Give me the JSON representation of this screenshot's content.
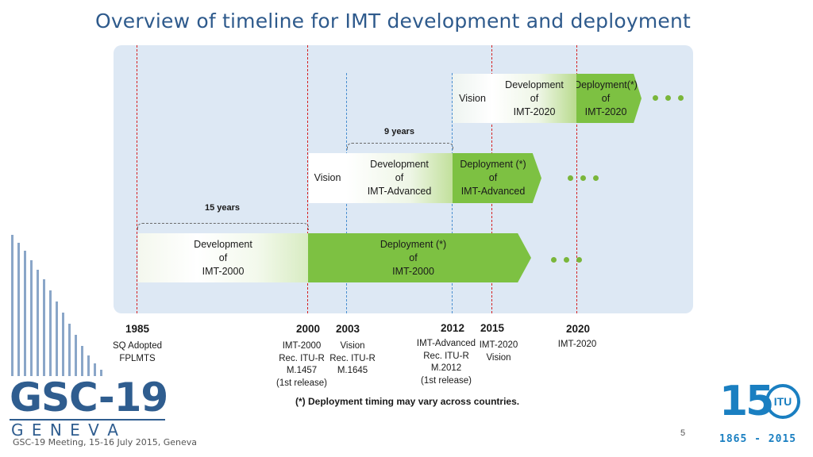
{
  "title": "Overview of timeline for IMT development and deployment",
  "colors": {
    "deploy_green": "#7dc142",
    "dev_gradient_end": "#a9d37a",
    "red_line": "#d62020",
    "blue_line": "#4a8fd0",
    "panel": "#dde8f4"
  },
  "rows": {
    "imt2020": {
      "vision": "Vision",
      "development": [
        "Development",
        "of",
        "IMT-2020"
      ],
      "deployment": [
        "Deployment(*)",
        "of",
        "IMT-2020"
      ]
    },
    "imt_advanced": {
      "bracket": "9 years",
      "vision": "Vision",
      "development": [
        "Development",
        "of",
        "IMT-Advanced"
      ],
      "deployment": [
        "Deployment (*)",
        "of",
        "IMT-Advanced"
      ]
    },
    "imt2000": {
      "bracket": "15 years",
      "development": [
        "Development",
        "of",
        "IMT-2000"
      ],
      "deployment": [
        "Deployment (*)",
        "of",
        "IMT-2000"
      ]
    }
  },
  "milestones": [
    {
      "year": "1985",
      "lines": [
        "SQ Adopted",
        "FPLMTS"
      ]
    },
    {
      "year": "2000",
      "lines": [
        "IMT-2000",
        "Rec. ITU-R",
        "M.1457",
        "(1st release)"
      ]
    },
    {
      "year": "2003",
      "lines": [
        "Vision",
        "Rec. ITU-R",
        "M.1645"
      ]
    },
    {
      "year": "2012",
      "lines": [
        "IMT-Advanced",
        "Rec. ITU-R",
        "M.2012",
        "(1st release)"
      ]
    },
    {
      "year": "2015",
      "lines": [
        "IMT-2020",
        "Vision"
      ]
    },
    {
      "year": "2020",
      "lines": [
        "IMT-2020"
      ]
    }
  ],
  "note": "(*) Deployment timing may vary across countries.",
  "gsc_logo": {
    "name": "GSC-19",
    "city": "G E N E V A"
  },
  "itu_logo": {
    "numeral": "15",
    "badge": "ITU",
    "years": "1865 - 2015"
  },
  "footer": "GSC-19 Meeting, 15-16 July 2015, Geneva",
  "page_number": "5"
}
